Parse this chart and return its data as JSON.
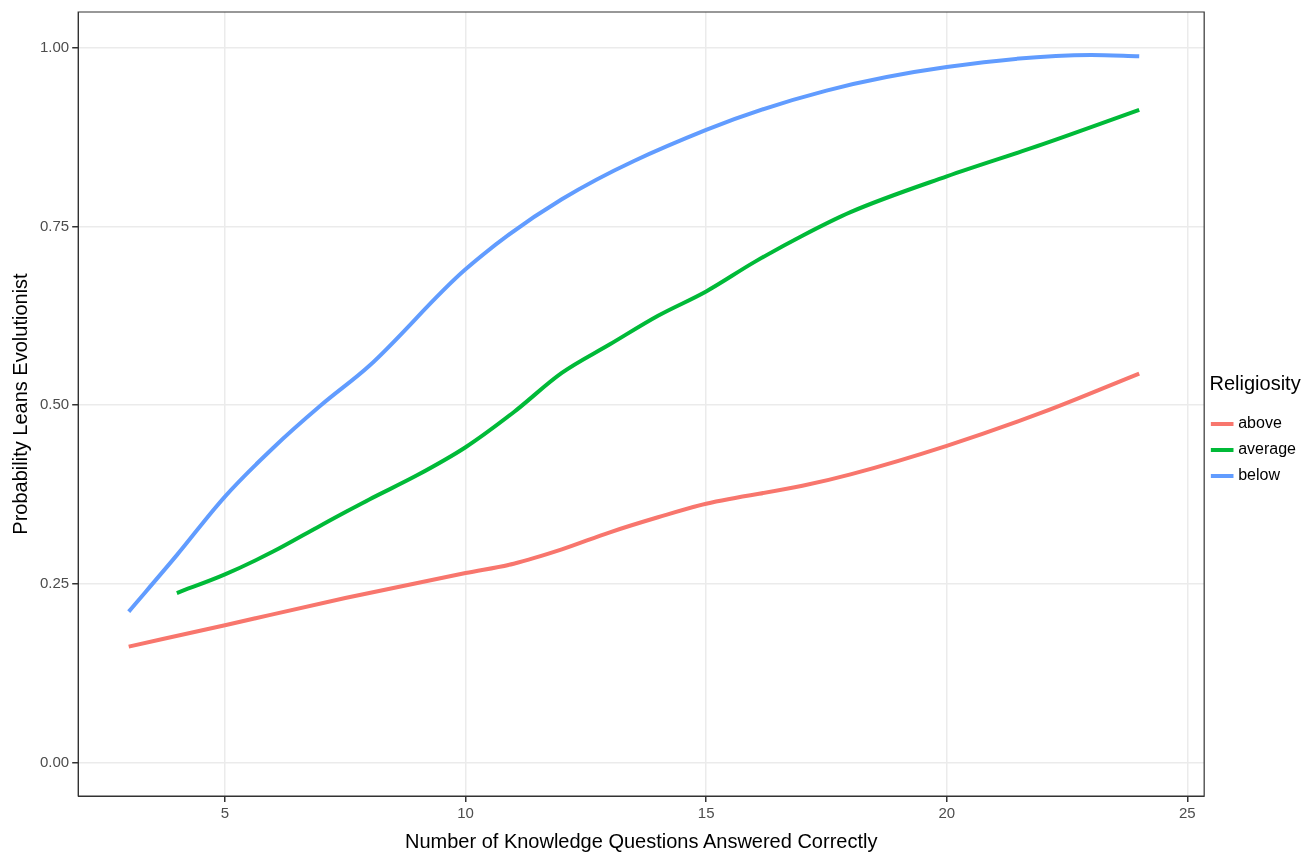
{
  "chart_data": {
    "type": "line",
    "xlabel": "Number of Knowledge Questions Answered Correctly",
    "ylabel": "Probability Leans Evolutionist",
    "legend_title": "Religiosity",
    "series": [
      {
        "name": "above",
        "color": "#f8766d",
        "x": [
          3,
          5,
          7.5,
          10,
          11,
          12,
          13,
          14,
          15,
          17,
          18,
          20,
          22,
          24
        ],
        "values": [
          0.162,
          0.192,
          0.23,
          0.265,
          0.278,
          0.298,
          0.322,
          0.343,
          0.362,
          0.387,
          0.403,
          0.443,
          0.49,
          0.544
        ]
      },
      {
        "name": "average",
        "color": "#00ba38",
        "x": [
          4,
          5,
          6,
          7,
          8,
          9,
          10,
          11,
          12,
          13,
          14,
          15,
          16,
          17,
          18,
          20,
          22,
          24
        ],
        "values": [
          0.237,
          0.263,
          0.295,
          0.332,
          0.368,
          0.402,
          0.441,
          0.49,
          0.545,
          0.585,
          0.625,
          0.659,
          0.7,
          0.737,
          0.77,
          0.82,
          0.865,
          0.913
        ]
      },
      {
        "name": "below",
        "color": "#619cff",
        "x": [
          3,
          4,
          5,
          6,
          7,
          8,
          10,
          12,
          15,
          17.5,
          20,
          23,
          24
        ],
        "values": [
          0.211,
          0.29,
          0.372,
          0.44,
          0.5,
          0.555,
          0.69,
          0.788,
          0.885,
          0.94,
          0.973,
          0.99,
          0.988
        ]
      }
    ],
    "xlim": [
      1.95,
      25.35
    ],
    "xticks": [
      5,
      10,
      15,
      20,
      25
    ],
    "ylim": [
      -0.047,
      1.05
    ],
    "yticks": [
      {
        "value": 0,
        "label": "0.00"
      },
      {
        "value": 0.25,
        "label": "0.25"
      },
      {
        "value": 0.5,
        "label": "0.50"
      },
      {
        "value": 0.75,
        "label": "0.75"
      },
      {
        "value": 1,
        "label": "1.00"
      }
    ],
    "grid": true,
    "legend": "right",
    "marker": "none",
    "line_style": "solid"
  }
}
